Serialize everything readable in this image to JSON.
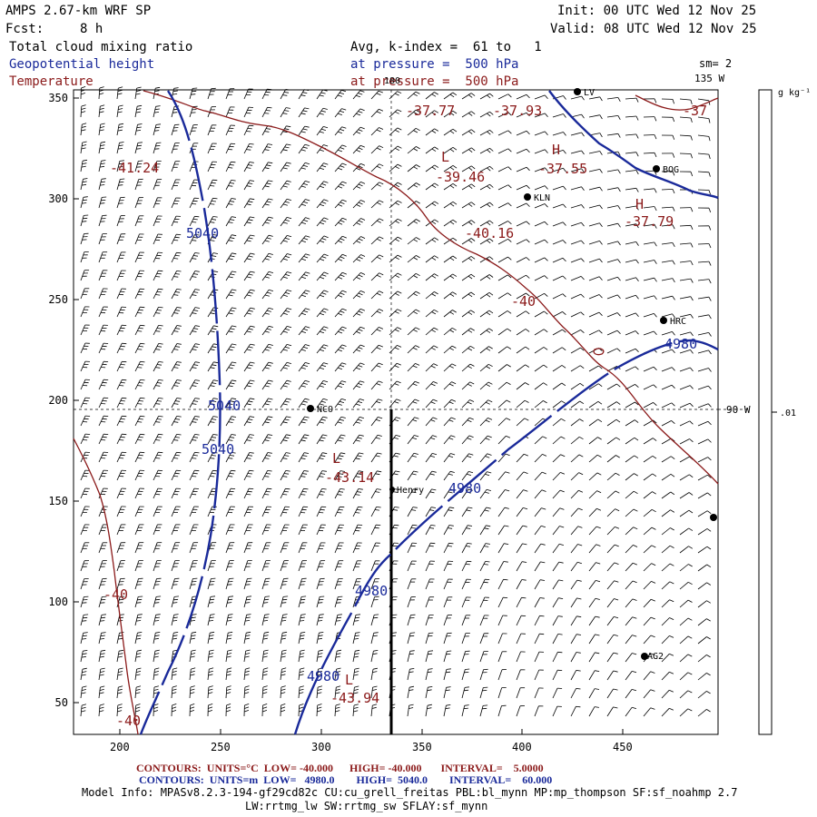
{
  "header": {
    "model": "AMPS 2.67-km WRF SP",
    "fcst_label": "Fcst:",
    "fcst_value": "8 h",
    "init": "Init: 00 UTC Wed 12 Nov 25",
    "valid": "Valid: 08 UTC Wed 12 Nov 25",
    "field1": "Total cloud mixing ratio",
    "field2": "Geopotential height",
    "field3": "Temperature",
    "avg": "Avg, k-index =  61 to   1",
    "pres_blue": "at pressure =  500 hPa",
    "pres_red": "at pressure =  500 hPa",
    "smooth": "sm= 2"
  },
  "axes": {
    "x_ticks": [
      "200",
      "250",
      "300",
      "350",
      "400",
      "450"
    ],
    "y_ticks": [
      "350",
      "300",
      "250",
      "200",
      "150",
      "100",
      "50"
    ],
    "lon_top_a": "180",
    "lon_top_b": "135 W",
    "lon_right": "90 W"
  },
  "colorbar": {
    "unit": "g kg⁻¹",
    "tick": ".01"
  },
  "stations": [
    {
      "label": "NCO"
    },
    {
      "label": "Henry"
    },
    {
      "label": "KLN"
    },
    {
      "label": "BOG"
    },
    {
      "label": "HRC"
    },
    {
      "label": "AG2"
    },
    {
      "label": "LV"
    }
  ],
  "temp_labels": [
    "-41.24",
    "-37.77",
    "-37.93",
    "-37",
    "-39.46",
    "-37.55",
    "-37.79",
    "-40.16",
    "-40",
    "-43.14",
    "-40",
    "-43.94",
    "-40"
  ],
  "height_labels": [
    "5040",
    "5040",
    "5040",
    "4980",
    "4980",
    "4980",
    "4980"
  ],
  "extrema": [
    "L",
    "H",
    "H",
    "L",
    "L"
  ],
  "footer": {
    "red_line": "CONTOURS:  UNITS=°C  LOW= -40.000      HIGH= -40.000       INTERVAL=    5.0000",
    "blue_line": "CONTOURS:  UNITS=m  LOW=   4980.0        HIGH=  5040.0        INTERVAL=    60.000",
    "model_info": "Model Info: MPASv8.2.3-194-gf29cd82c CU:cu_grell_freitas PBL:bl_mynn MP:mp_thompson SF:sf_noahmp 2.7",
    "model_info2": "LW:rrtmg_lw SW:rrtmg_sw SFLAY:sf_mynn"
  },
  "colors": {
    "temperature": "#8b1a1a",
    "height": "#1a2a9a",
    "axis": "#000000"
  }
}
